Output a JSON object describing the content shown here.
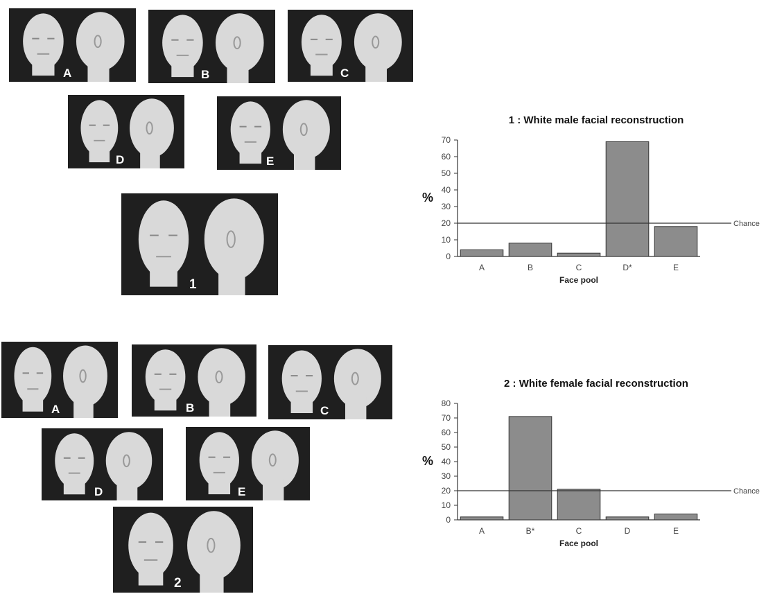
{
  "group1": {
    "panels": [
      {
        "id": "A",
        "label": "A"
      },
      {
        "id": "B",
        "label": "B"
      },
      {
        "id": "C",
        "label": "C"
      },
      {
        "id": "D",
        "label": "D"
      },
      {
        "id": "E",
        "label": "E"
      },
      {
        "id": "1",
        "label": "1"
      }
    ]
  },
  "group2": {
    "panels": [
      {
        "id": "A",
        "label": "A"
      },
      {
        "id": "B",
        "label": "B"
      },
      {
        "id": "C",
        "label": "C"
      },
      {
        "id": "D",
        "label": "D"
      },
      {
        "id": "E",
        "label": "E"
      },
      {
        "id": "2",
        "label": "2"
      }
    ]
  },
  "colors": {
    "bar_fill": "#8c8c8c",
    "bar_stroke": "#333333",
    "panel_bg": "#1f1f1f",
    "face": "#d9d9d9"
  },
  "chart_data": [
    {
      "type": "bar",
      "title": "1 : White male facial reconstruction",
      "xlabel": "Face pool",
      "ylabel": "%",
      "categories": [
        "A",
        "B",
        "C",
        "D*",
        "E"
      ],
      "values": [
        4,
        8,
        2,
        69,
        18
      ],
      "ylim": [
        0,
        70
      ],
      "yticks": [
        0,
        10,
        20,
        30,
        40,
        50,
        60,
        70
      ],
      "reference_line": {
        "value": 20,
        "label": "Chance"
      },
      "grid": false
    },
    {
      "type": "bar",
      "title": "2 : White female facial reconstruction",
      "xlabel": "Face pool",
      "ylabel": "%",
      "categories": [
        "A",
        "B*",
        "C",
        "D",
        "E"
      ],
      "values": [
        2,
        71,
        21,
        2,
        4
      ],
      "ylim": [
        0,
        80
      ],
      "yticks": [
        0,
        10,
        20,
        30,
        40,
        50,
        60,
        70,
        80
      ],
      "reference_line": {
        "value": 20,
        "label": "Chance"
      },
      "grid": false
    }
  ]
}
